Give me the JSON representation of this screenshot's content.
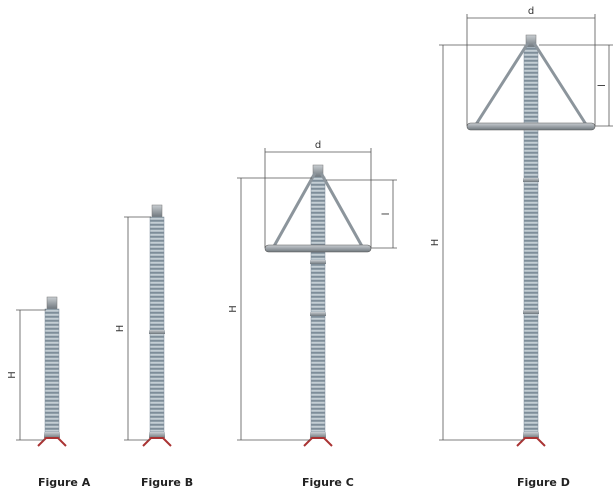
{
  "figures": [
    {
      "caption": "Figure A",
      "dimensions": {
        "height": "H"
      }
    },
    {
      "caption": "Figure B",
      "dimensions": {
        "height": "H"
      }
    },
    {
      "caption": "Figure C",
      "dimensions": {
        "height": "H",
        "diameter": "d",
        "ring_height": "l"
      }
    },
    {
      "caption": "Figure D",
      "dimensions": {
        "height": "H",
        "diameter": "d",
        "ring_height": "l"
      }
    }
  ]
}
